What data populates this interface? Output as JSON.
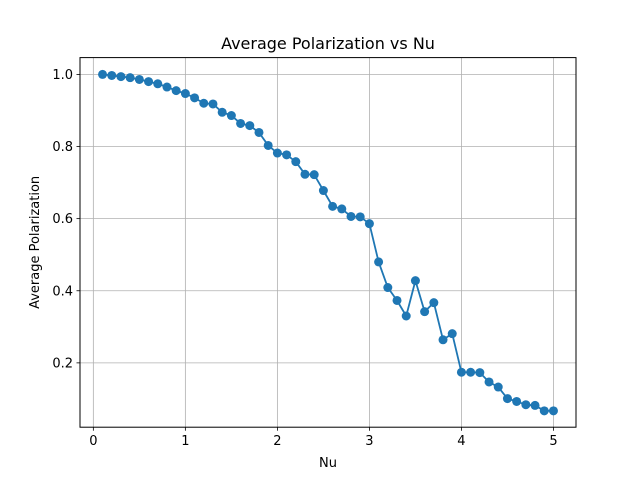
{
  "chart_data": {
    "type": "line",
    "title": "Average Polarization vs Nu",
    "xlabel": "Nu",
    "ylabel": "Average Polarization",
    "xlim": [
      -0.145,
      5.245
    ],
    "ylim": [
      0.0216,
      1.0466
    ],
    "xticks": [
      0,
      1,
      2,
      3,
      4,
      5
    ],
    "xtick_labels": [
      "0",
      "1",
      "2",
      "3",
      "4",
      "5"
    ],
    "yticks": [
      0.2,
      0.4,
      0.6,
      0.8,
      1.0
    ],
    "ytick_labels": [
      "0.2",
      "0.4",
      "0.6",
      "0.8",
      "1.0"
    ],
    "grid": true,
    "marker": "circle",
    "color": "#1f77b4",
    "series": [
      {
        "x": [
          0.1,
          0.2,
          0.3,
          0.4,
          0.5,
          0.6,
          0.7,
          0.8,
          0.9,
          1.0,
          1.1,
          1.2,
          1.3,
          1.4,
          1.5,
          1.6,
          1.7,
          1.8,
          1.9,
          2.0,
          2.1,
          2.2,
          2.3,
          2.4,
          2.5,
          2.6,
          2.7,
          2.8,
          2.9,
          3.0,
          3.1,
          3.2,
          3.3,
          3.4,
          3.5,
          3.6,
          3.7,
          3.8,
          3.9,
          4.0,
          4.1,
          4.2,
          4.3,
          4.4,
          4.5,
          4.6,
          4.7,
          4.8,
          4.9,
          5.0
        ],
        "values": [
          1.0,
          0.997,
          0.994,
          0.991,
          0.986,
          0.98,
          0.974,
          0.965,
          0.955,
          0.947,
          0.935,
          0.92,
          0.918,
          0.895,
          0.886,
          0.864,
          0.858,
          0.839,
          0.803,
          0.782,
          0.777,
          0.758,
          0.723,
          0.722,
          0.678,
          0.634,
          0.627,
          0.606,
          0.605,
          0.586,
          0.48,
          0.409,
          0.373,
          0.33,
          0.428,
          0.342,
          0.367,
          0.264,
          0.281,
          0.174,
          0.174,
          0.173,
          0.147,
          0.133,
          0.101,
          0.093,
          0.084,
          0.082,
          0.067,
          0.067
        ]
      }
    ]
  }
}
